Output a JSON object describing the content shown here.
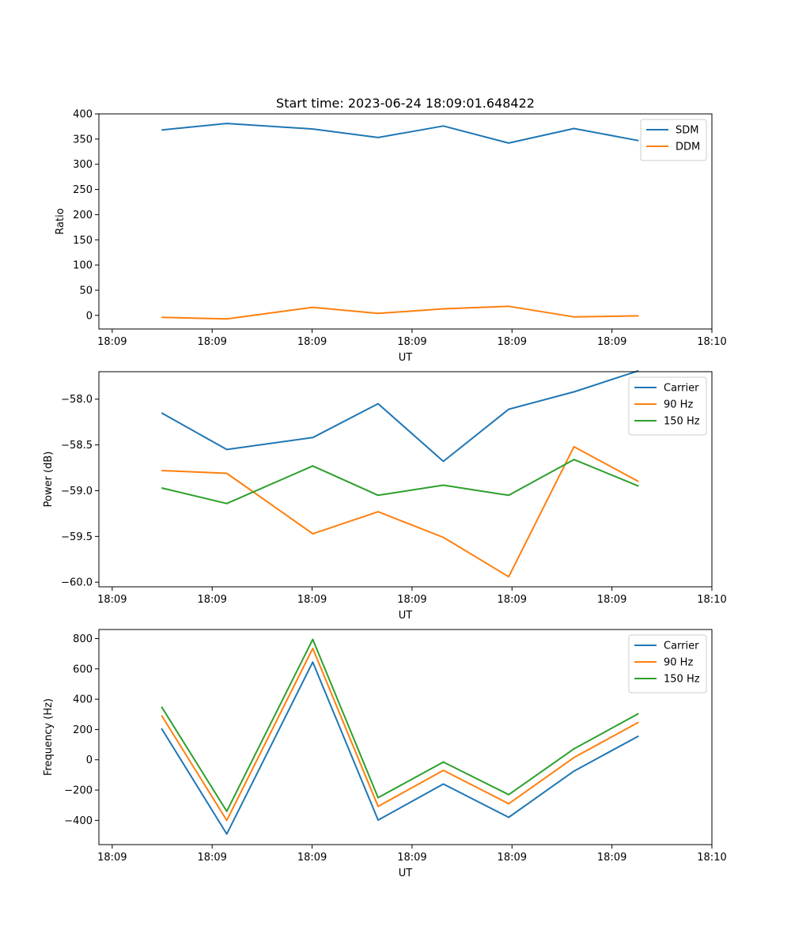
{
  "chart_data": [
    {
      "type": "line",
      "title": "Start time: 2023-06-24 18:09:01.648422",
      "xlabel": "UT",
      "ylabel": "Ratio",
      "xlim": [
        -0.5,
        8.7
      ],
      "ylim": [
        -27,
        400
      ],
      "x_ticks": [
        {
          "pos": -0.3,
          "label": "18:09"
        },
        {
          "pos": 1.2,
          "label": "18:09"
        },
        {
          "pos": 2.7,
          "label": "18:09"
        },
        {
          "pos": 4.2,
          "label": "18:09"
        },
        {
          "pos": 5.7,
          "label": "18:09"
        },
        {
          "pos": 7.2,
          "label": "18:09"
        },
        {
          "pos": 8.7,
          "label": "18:10"
        }
      ],
      "y_ticks": [
        0,
        50,
        100,
        150,
        200,
        250,
        300,
        350,
        400
      ],
      "y_tick_labels": [
        "0",
        "50",
        "100",
        "150",
        "200",
        "250",
        "300",
        "350",
        "400"
      ],
      "x": [
        0.44,
        1.42,
        2.71,
        3.69,
        4.67,
        5.65,
        6.63,
        7.6
      ],
      "series": [
        {
          "name": "SDM",
          "color": "#1f77b4",
          "values": [
            368,
            381,
            370,
            353,
            376,
            342,
            371,
            347
          ]
        },
        {
          "name": "DDM",
          "color": "#ff7f0e",
          "values": [
            -4,
            -7,
            16,
            4,
            13,
            18,
            -3,
            -1
          ]
        }
      ],
      "legend": "top-right",
      "grid": false
    },
    {
      "type": "line",
      "xlabel": "UT",
      "ylabel": "Power (dB)",
      "xlim": [
        -0.5,
        8.7
      ],
      "ylim": [
        -60.05,
        -57.7
      ],
      "x_ticks": [
        {
          "pos": -0.3,
          "label": "18:09"
        },
        {
          "pos": 1.2,
          "label": "18:09"
        },
        {
          "pos": 2.7,
          "label": "18:09"
        },
        {
          "pos": 4.2,
          "label": "18:09"
        },
        {
          "pos": 5.7,
          "label": "18:09"
        },
        {
          "pos": 7.2,
          "label": "18:09"
        },
        {
          "pos": 8.7,
          "label": "18:10"
        }
      ],
      "y_ticks": [
        -60.0,
        -59.5,
        -59.0,
        -58.5,
        -58.0
      ],
      "y_tick_labels": [
        "−60.0",
        "−59.5",
        "−59.0",
        "−58.5",
        "−58.0"
      ],
      "x": [
        0.44,
        1.42,
        2.71,
        3.69,
        4.67,
        5.65,
        6.63,
        7.6
      ],
      "series": [
        {
          "name": "Carrier",
          "color": "#1f77b4",
          "values": [
            -58.15,
            -58.55,
            -58.42,
            -58.05,
            -58.68,
            -58.11,
            -57.92,
            -57.69
          ]
        },
        {
          "name": "90 Hz",
          "color": "#ff7f0e",
          "values": [
            -58.78,
            -58.81,
            -59.47,
            -59.23,
            -59.51,
            -59.94,
            -58.52,
            -58.9
          ]
        },
        {
          "name": "150 Hz",
          "color": "#2ca02c",
          "values": [
            -58.97,
            -59.14,
            -58.73,
            -59.05,
            -58.94,
            -59.05,
            -58.66,
            -58.95
          ]
        }
      ],
      "legend": "top-right",
      "grid": false
    },
    {
      "type": "line",
      "xlabel": "UT",
      "ylabel": "Frequency (Hz)",
      "xlim": [
        -0.5,
        8.7
      ],
      "ylim": [
        -560,
        860
      ],
      "x_ticks": [
        {
          "pos": -0.3,
          "label": "18:09"
        },
        {
          "pos": 1.2,
          "label": "18:09"
        },
        {
          "pos": 2.7,
          "label": "18:09"
        },
        {
          "pos": 4.2,
          "label": "18:09"
        },
        {
          "pos": 5.7,
          "label": "18:09"
        },
        {
          "pos": 7.2,
          "label": "18:09"
        },
        {
          "pos": 8.7,
          "label": "18:10"
        }
      ],
      "y_ticks": [
        -400,
        -200,
        0,
        200,
        400,
        600,
        800
      ],
      "y_tick_labels": [
        "−400",
        "−200",
        "0",
        "200",
        "400",
        "600",
        "800"
      ],
      "x": [
        0.44,
        1.42,
        2.71,
        3.69,
        4.67,
        5.65,
        6.63,
        7.6
      ],
      "series": [
        {
          "name": "Carrier",
          "color": "#1f77b4",
          "values": [
            207,
            -490,
            645,
            -398,
            -160,
            -380,
            -75,
            157
          ]
        },
        {
          "name": "90 Hz",
          "color": "#ff7f0e",
          "values": [
            293,
            -400,
            735,
            -308,
            -70,
            -290,
            15,
            248
          ]
        },
        {
          "name": "150 Hz",
          "color": "#2ca02c",
          "values": [
            350,
            -340,
            795,
            -250,
            -15,
            -230,
            72,
            305
          ]
        }
      ],
      "legend": "top-right",
      "grid": false
    }
  ]
}
